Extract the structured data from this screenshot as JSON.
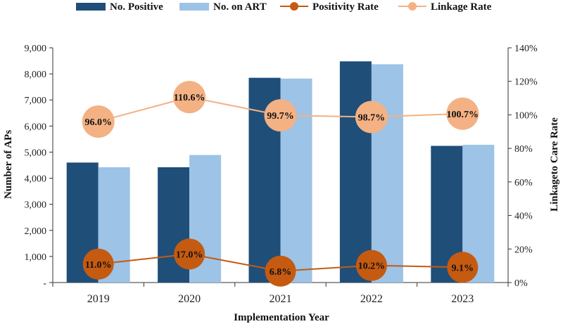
{
  "chart_data": {
    "type": "bar",
    "title": "",
    "xlabel": "Implementation Year",
    "ylabel": "Number of APs",
    "y2label": "Linkageto Care  Rate",
    "categories": [
      "2019",
      "2020",
      "2021",
      "2022",
      "2023"
    ],
    "ylim": [
      0,
      9000
    ],
    "y2lim": [
      0,
      140
    ],
    "y_ticks": [
      "-",
      "1,000",
      "2,000",
      "3,000",
      "4,000",
      "5,000",
      "6,000",
      "7,000",
      "8,000",
      "9,000"
    ],
    "y2_ticks": [
      "0%",
      "20%",
      "40%",
      "60%",
      "80%",
      "100%",
      "120%",
      "140%"
    ],
    "legend_position": "top",
    "series": [
      {
        "name": "No. Positive",
        "kind": "bar",
        "axis": "left",
        "color": "#1f4e79",
        "values": [
          4600,
          4420,
          7850,
          8480,
          5240
        ]
      },
      {
        "name": "No. on ART",
        "kind": "bar",
        "axis": "left",
        "color": "#9dc3e6",
        "values": [
          4420,
          4890,
          7820,
          8370,
          5280
        ]
      },
      {
        "name": "Positivity Rate",
        "kind": "line",
        "axis": "right",
        "color": "#c55a11",
        "values": [
          11.0,
          17.0,
          6.8,
          10.2,
          9.1
        ],
        "labels": [
          "11.0%",
          "17.0%",
          "6.8%",
          "10.2%",
          "9.1%"
        ]
      },
      {
        "name": "Linkage Rate",
        "kind": "line",
        "axis": "right",
        "color": "#f4b183",
        "values": [
          96.0,
          110.6,
          99.7,
          98.7,
          100.7
        ],
        "labels": [
          "96.0%",
          "110.6%",
          "99.7%",
          "98.7%",
          "100.7%"
        ]
      }
    ]
  }
}
